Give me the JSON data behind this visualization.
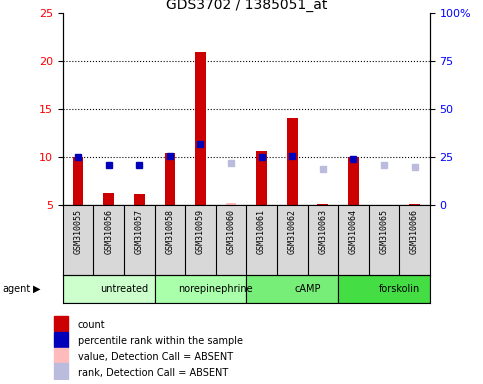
{
  "title": "GDS3702 / 1385051_at",
  "samples": [
    "GSM310055",
    "GSM310056",
    "GSM310057",
    "GSM310058",
    "GSM310059",
    "GSM310060",
    "GSM310061",
    "GSM310062",
    "GSM310063",
    "GSM310064",
    "GSM310065",
    "GSM310066"
  ],
  "count_values": [
    10.0,
    6.3,
    6.2,
    10.5,
    21.0,
    null,
    10.7,
    14.1,
    5.1,
    10.0,
    null,
    5.1
  ],
  "absent_count_values": [
    null,
    null,
    null,
    null,
    null,
    5.3,
    null,
    null,
    null,
    null,
    null,
    null
  ],
  "rank_pct": [
    25.0,
    null,
    null,
    26.0,
    32.0,
    null,
    25.0,
    26.0,
    null,
    24.0,
    null,
    null
  ],
  "absent_rank_pct": [
    null,
    null,
    null,
    null,
    null,
    22.0,
    null,
    null,
    19.0,
    null,
    21.0,
    20.0
  ],
  "blue_pct_present": [
    25.0,
    21.0,
    21.0,
    26.0,
    32.0,
    null,
    25.0,
    26.0,
    null,
    24.0,
    null,
    null
  ],
  "groups": [
    {
      "label": "untreated",
      "start": 0,
      "end": 3,
      "color": "#ccffcc"
    },
    {
      "label": "norepinephrine",
      "start": 3,
      "end": 6,
      "color": "#aaffaa"
    },
    {
      "label": "cAMP",
      "start": 6,
      "end": 9,
      "color": "#77ee77"
    },
    {
      "label": "forskolin",
      "start": 9,
      "end": 12,
      "color": "#44dd44"
    }
  ],
  "ylim_left": [
    5,
    25
  ],
  "ylim_right": [
    0,
    100
  ],
  "yticks_left": [
    5,
    10,
    15,
    20,
    25
  ],
  "yticks_right": [
    0,
    25,
    50,
    75,
    100
  ],
  "ytick_labels_left": [
    "5",
    "10",
    "15",
    "20",
    "25"
  ],
  "ytick_labels_right": [
    "0",
    "25",
    "50",
    "75",
    "100%"
  ],
  "bar_color": "#cc0000",
  "rank_square_color": "#0000bb",
  "absent_bar_color": "#ffbbbb",
  "absent_rank_color": "#bbbbdd",
  "legend_items": [
    {
      "color": "#cc0000",
      "marker": "s",
      "label": "count"
    },
    {
      "color": "#0000bb",
      "marker": "s",
      "label": "percentile rank within the sample"
    },
    {
      "color": "#ffbbbb",
      "marker": "s",
      "label": "value, Detection Call = ABSENT"
    },
    {
      "color": "#bbbbdd",
      "marker": "s",
      "label": "rank, Detection Call = ABSENT"
    }
  ]
}
